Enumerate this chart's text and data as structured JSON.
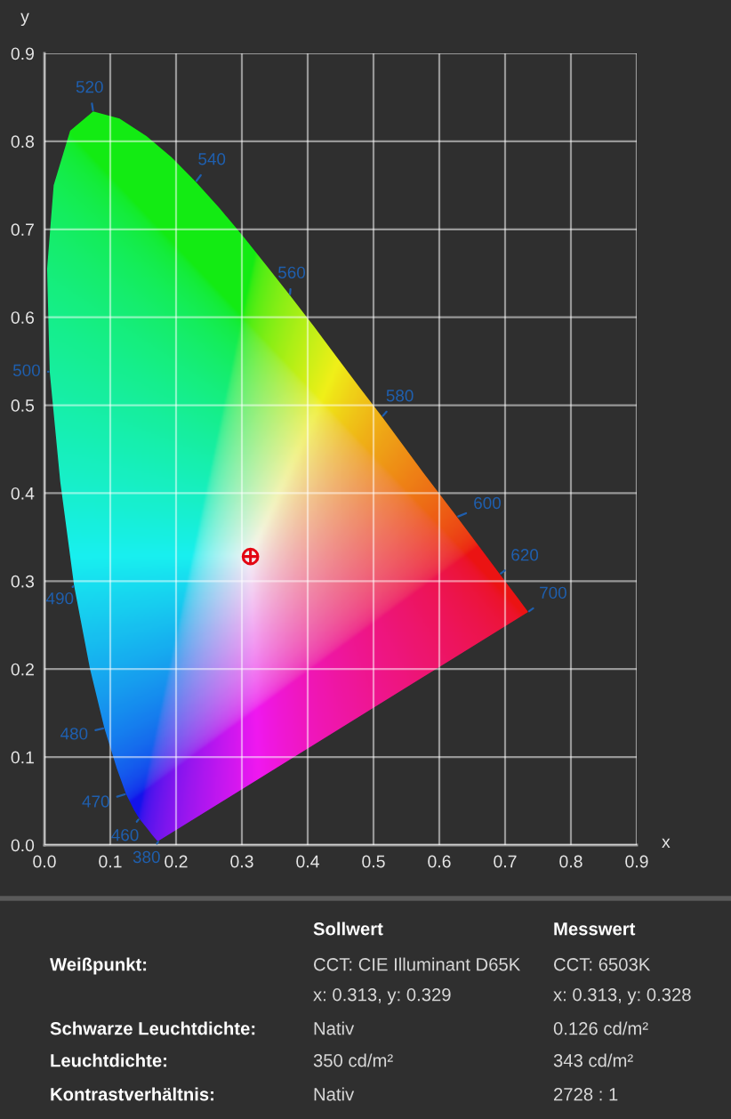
{
  "chart_data": {
    "type": "area",
    "xlabel": "x",
    "ylabel": "y",
    "xlim": [
      0,
      0.9
    ],
    "ylim": [
      0,
      0.9
    ],
    "xticks": [
      {
        "value": 0,
        "label": "0.0"
      },
      0.1,
      0.2,
      0.3,
      0.4,
      0.5,
      0.6,
      0.7,
      0.8,
      0.9
    ],
    "yticks": [
      {
        "value": 0,
        "label": "0.0"
      },
      0.1,
      0.2,
      0.3,
      0.4,
      0.5,
      0.6,
      0.7,
      0.8,
      0.9
    ],
    "grid": true,
    "series": [
      {
        "x": [
          0.174,
          0.171,
          0.164,
          0.157,
          0.144,
          0.136,
          0.124,
          0.11,
          0.091,
          0.069,
          0.045,
          0.024,
          0.008,
          0.004,
          0.014,
          0.039,
          0.074,
          0.114,
          0.155,
          0.193,
          0.23,
          0.266,
          0.302,
          0.337,
          0.373,
          0.409,
          0.444,
          0.479,
          0.513,
          0.575,
          0.627,
          0.666,
          0.692,
          0.708,
          0.719,
          0.73,
          0.735
        ],
        "values": [
          0.005,
          0.005,
          0.011,
          0.018,
          0.03,
          0.04,
          0.058,
          0.087,
          0.133,
          0.201,
          0.295,
          0.413,
          0.538,
          0.655,
          0.75,
          0.812,
          0.834,
          0.826,
          0.806,
          0.782,
          0.754,
          0.724,
          0.692,
          0.659,
          0.625,
          0.59,
          0.555,
          0.52,
          0.487,
          0.424,
          0.373,
          0.334,
          0.308,
          0.292,
          0.281,
          0.27,
          0.265
        ]
      },
      {
        "type": "scatter",
        "x": [
          0.313
        ],
        "values": [
          0.328
        ],
        "color": "#e30613",
        "marker": "cross"
      }
    ],
    "annotations": [
      {
        "text": "380",
        "x": 0.174,
        "y": 0.005
      },
      {
        "text": "460",
        "x": 0.144,
        "y": 0.03
      },
      {
        "text": "470",
        "x": 0.124,
        "y": 0.058
      },
      {
        "text": "480",
        "x": 0.091,
        "y": 0.133
      },
      {
        "text": "490",
        "x": 0.045,
        "y": 0.295
      },
      {
        "text": "500",
        "x": 0.008,
        "y": 0.538
      },
      {
        "text": "520",
        "x": 0.074,
        "y": 0.834
      },
      {
        "text": "540",
        "x": 0.23,
        "y": 0.754
      },
      {
        "text": "560",
        "x": 0.373,
        "y": 0.625
      },
      {
        "text": "580",
        "x": 0.513,
        "y": 0.487
      },
      {
        "text": "600",
        "x": 0.627,
        "y": 0.373
      },
      {
        "text": "620",
        "x": 0.692,
        "y": 0.308
      },
      {
        "text": "700",
        "x": 0.735,
        "y": 0.265
      },
      "Sollwert",
      "Messwert",
      "Weißpunkt:",
      "CCT: CIE Illuminant D65K",
      "CCT: 6503K",
      "x: 0.313, y: 0.329",
      "x: 0.313, y: 0.328",
      "Schwarze Leuchtdichte:",
      "Nativ",
      "0.126 cd/m²",
      "Leuchtdichte:",
      "350 cd/m²",
      "343 cd/m²",
      "Kontrastverhältnis:",
      "Nativ",
      "2728 : 1"
    ]
  }
}
